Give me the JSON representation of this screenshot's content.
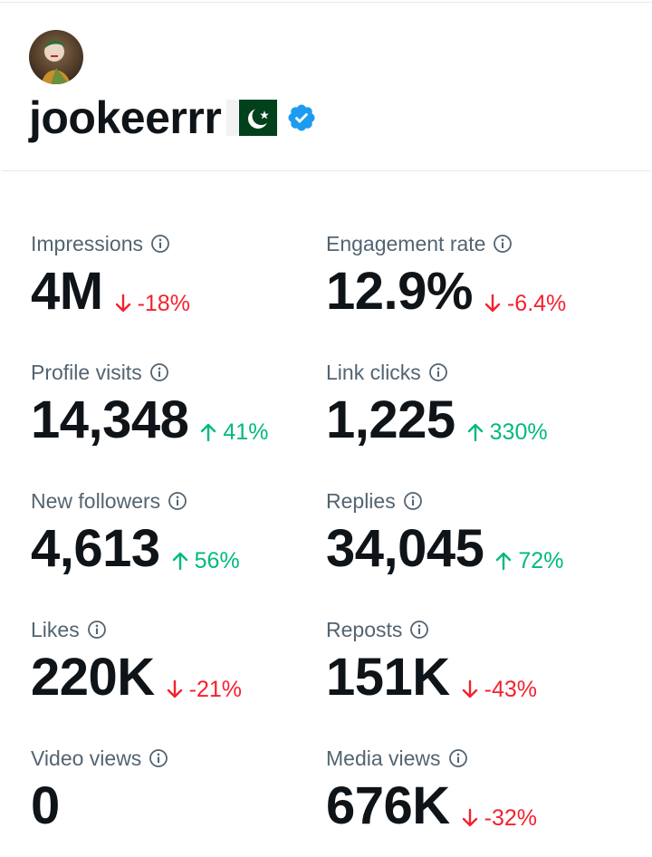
{
  "profile": {
    "display_name": "jookeerrr",
    "flag_icon": "pakistan-flag-icon",
    "verified_icon": "verified-badge-icon"
  },
  "colors": {
    "up": "#00ba7c",
    "down": "#f4212e",
    "verified": "#1d9bf0",
    "flag_green": "#01411c"
  },
  "metrics": [
    {
      "label": "Impressions",
      "value": "4M",
      "delta": "-18%",
      "direction": "down"
    },
    {
      "label": "Engagement rate",
      "value": "12.9%",
      "delta": "-6.4%",
      "direction": "down"
    },
    {
      "label": "Profile visits",
      "value": "14,348",
      "delta": "41%",
      "direction": "up"
    },
    {
      "label": "Link clicks",
      "value": "1,225",
      "delta": "330%",
      "direction": "up"
    },
    {
      "label": "New followers",
      "value": "4,613",
      "delta": "56%",
      "direction": "up"
    },
    {
      "label": "Replies",
      "value": "34,045",
      "delta": "72%",
      "direction": "up"
    },
    {
      "label": "Likes",
      "value": "220K",
      "delta": "-21%",
      "direction": "down"
    },
    {
      "label": "Reposts",
      "value": "151K",
      "delta": "-43%",
      "direction": "down"
    },
    {
      "label": "Video views",
      "value": "0",
      "delta": "",
      "direction": "none"
    },
    {
      "label": "Media views",
      "value": "676K",
      "delta": "-32%",
      "direction": "down"
    }
  ]
}
